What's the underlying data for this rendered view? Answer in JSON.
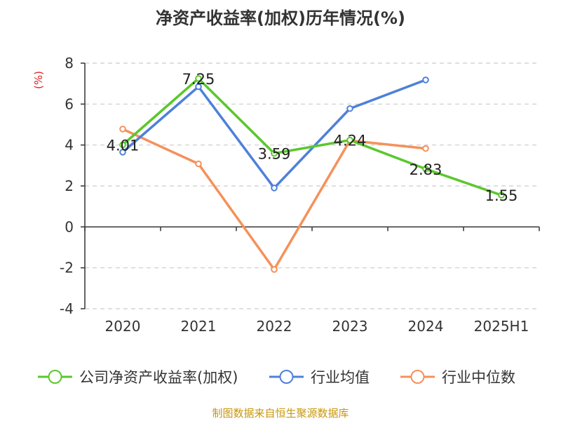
{
  "chart_data": {
    "type": "line",
    "title": "净资产收益率(加权)历年情况(%)",
    "ylabel": "(%)",
    "categories": [
      "2020",
      "2021",
      "2022",
      "2023",
      "2024",
      "2025H1"
    ],
    "ylim": [
      -4,
      8
    ],
    "yticks": [
      "8",
      "6",
      "4",
      "2",
      "0",
      "-2",
      "-4"
    ],
    "grid": true,
    "legend_position": "bottom",
    "series": [
      {
        "name": "公司净资产收益率(加权)",
        "color": "#5ac82c",
        "values": [
          4.01,
          7.25,
          3.59,
          4.24,
          2.83,
          1.55
        ],
        "labels": [
          "4.01",
          "7.25",
          "3.59",
          "4.24",
          "2.83",
          "1.55"
        ]
      },
      {
        "name": "行业均值",
        "color": "#4e80db",
        "values": [
          3.65,
          6.85,
          1.9,
          5.78,
          7.18,
          null
        ]
      },
      {
        "name": "行业中位数",
        "color": "#f5915a",
        "values": [
          4.78,
          3.08,
          -2.08,
          4.22,
          3.83,
          null
        ]
      }
    ]
  },
  "footer": {
    "source": "制图数据来自恒生聚源数据库"
  }
}
